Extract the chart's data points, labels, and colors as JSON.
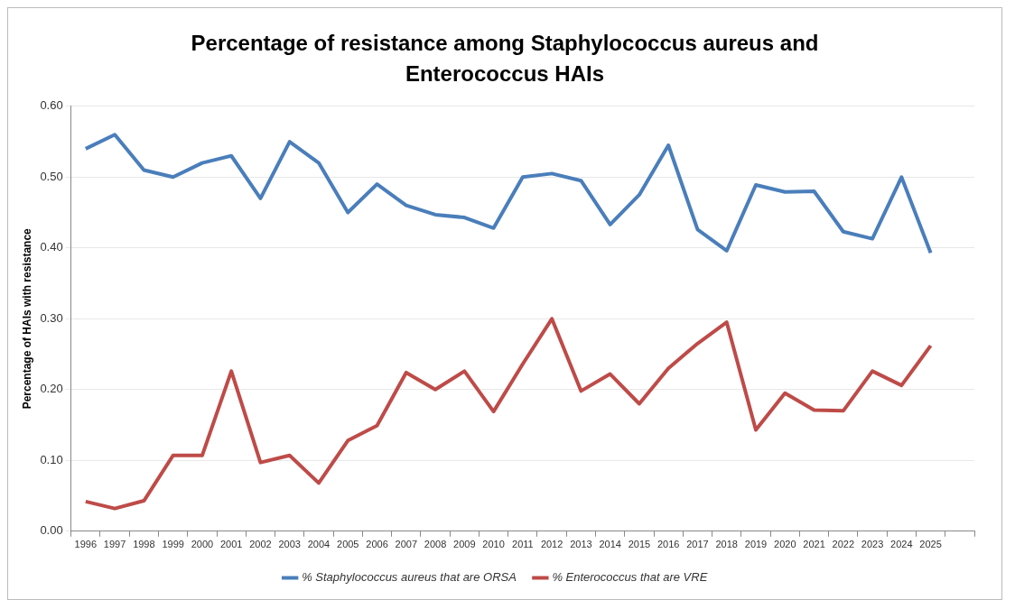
{
  "chart_data": {
    "type": "line",
    "title": "Percentage of resistance among Staphylococcus aureus and Enterococcus HAIs",
    "ylabel": "Percentage of HAIs with resistance",
    "categories": [
      "1996",
      "1997",
      "1998",
      "1999",
      "2000",
      "2001",
      "2002",
      "2003",
      "2004",
      "2005",
      "2006",
      "2007",
      "2008",
      "2009",
      "2010",
      "2011",
      "2012",
      "2013",
      "2014",
      "2015",
      "2016",
      "2017",
      "2018",
      "2019",
      "2020",
      "2021",
      "2022",
      "2023",
      "2024",
      "2025",
      null
    ],
    "series": [
      {
        "name": "% Staphylococcus aureus that are ORSA",
        "color": "#4a7ebb",
        "values": [
          0.54,
          0.56,
          0.51,
          0.5,
          0.52,
          0.53,
          0.47,
          0.55,
          0.52,
          0.45,
          0.49,
          0.46,
          0.447,
          0.443,
          0.428,
          0.5,
          0.505,
          0.495,
          0.433,
          0.475,
          0.545,
          0.426,
          0.396,
          0.489,
          0.479,
          0.48,
          0.423,
          0.413,
          0.5,
          0.393,
          null
        ]
      },
      {
        "name": "% Enterococcus that are VRE",
        "color": "#be4b48",
        "values": [
          0.042,
          0.032,
          0.043,
          0.107,
          0.107,
          0.226,
          0.097,
          0.107,
          0.068,
          0.128,
          0.149,
          0.224,
          0.2,
          0.226,
          0.169,
          0.236,
          0.3,
          0.198,
          0.222,
          0.18,
          0.23,
          0.265,
          0.295,
          0.143,
          0.195,
          0.171,
          0.17,
          0.226,
          0.206,
          0.262,
          null
        ]
      }
    ],
    "ylim": [
      0,
      0.6
    ],
    "yticks": [
      {
        "value": 0,
        "label": "0.00"
      },
      {
        "value": 0.1,
        "label": "0.10"
      },
      {
        "value": 0.2,
        "label": "0.20"
      },
      {
        "value": 0.3,
        "label": "0.30"
      },
      {
        "value": 0.4,
        "label": "0.40"
      },
      {
        "value": 0.5,
        "label": "0.50"
      },
      {
        "value": 0.6,
        "label": "0.60"
      }
    ],
    "grid": "y",
    "legend": "bottom",
    "marker": "none",
    "line_style": "solid"
  }
}
